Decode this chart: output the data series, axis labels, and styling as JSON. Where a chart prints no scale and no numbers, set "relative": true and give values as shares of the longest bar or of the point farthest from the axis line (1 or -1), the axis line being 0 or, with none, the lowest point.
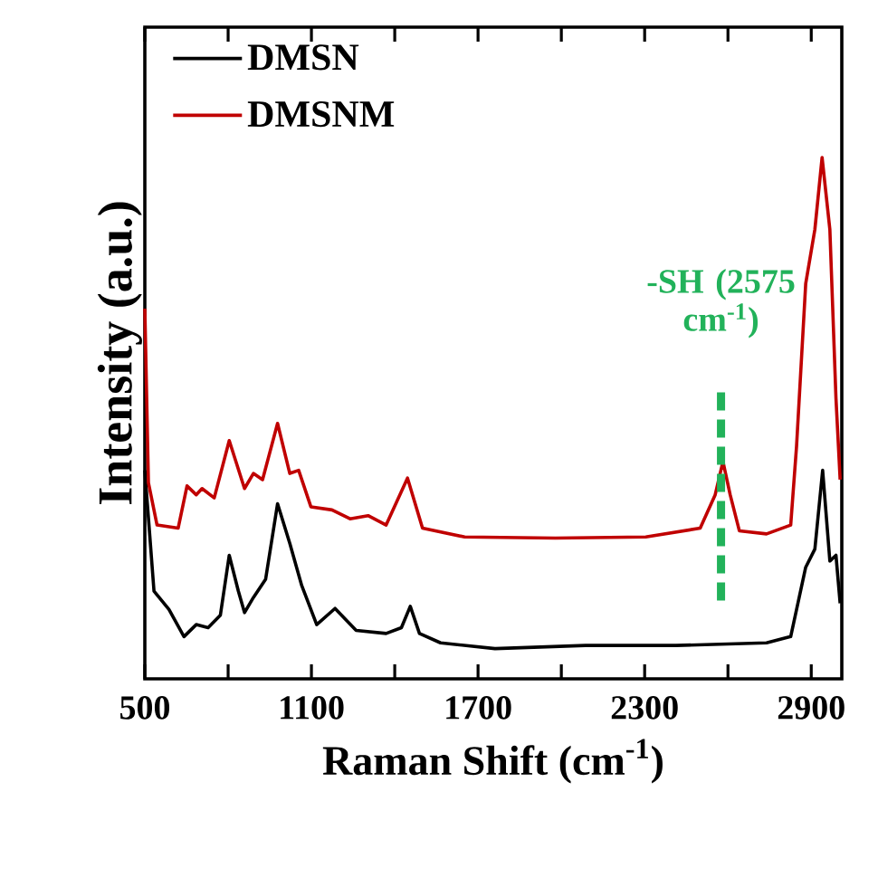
{
  "chart_data": {
    "type": "line",
    "relative": true,
    "xlabel": "Raman Shift (cm$^{-1}$)",
    "ylabel": "Intensity (a.u.)",
    "xlim": [
      500,
      3010
    ],
    "xticks": [
      500,
      {
        "value": 800,
        "label": null
      },
      1100,
      {
        "value": 1400,
        "label": null
      },
      1700,
      {
        "value": 2000,
        "label": null
      },
      2300,
      {
        "value": 2600,
        "label": null
      },
      2900
    ],
    "tick_labels": "x",
    "legend": "top left",
    "grid": false,
    "line_style": "solid",
    "marker": "none",
    "ref_lines": [
      {
        "axis": "x",
        "value": 2575,
        "label": "-SH (2575 cm$^{-1}$)",
        "color": "#22b25a",
        "line_style": "dashed"
      }
    ],
    "series": [
      {
        "name": "DMSN",
        "color": "#000000",
        "x": [
          500,
          533,
          587,
          641,
          685,
          728,
          772,
          804,
          837,
          859,
          891,
          935,
          978,
          1022,
          1065,
          1119,
          1185,
          1261,
          1369,
          1424,
          1456,
          1489,
          1565,
          1761,
          2087,
          2413,
          2739,
          2826,
          2880,
          2913,
          2941,
          2967,
          2989,
          3004
        ],
        "values": [
          0.4,
          0.168,
          0.133,
          0.081,
          0.104,
          0.098,
          0.122,
          0.237,
          0.168,
          0.127,
          0.156,
          0.191,
          0.336,
          0.26,
          0.179,
          0.104,
          0.135,
          0.093,
          0.087,
          0.098,
          0.139,
          0.087,
          0.069,
          0.058,
          0.064,
          0.064,
          0.069,
          0.081,
          0.214,
          0.249,
          0.4,
          0.226,
          0.237,
          0.145
        ]
      },
      {
        "name": "DMSNM",
        "color": "#c00000",
        "x": [
          500,
          513,
          544,
          620,
          652,
          685,
          706,
          750,
          804,
          859,
          891,
          924,
          978,
          1022,
          1054,
          1098,
          1174,
          1239,
          1304,
          1369,
          1446,
          1500,
          1652,
          1978,
          2304,
          2500,
          2554,
          2582,
          2608,
          2641,
          2739,
          2826,
          2847,
          2880,
          2913,
          2939,
          2967,
          2989,
          3004
        ],
        "values": [
          0.71,
          0.376,
          0.295,
          0.289,
          0.37,
          0.353,
          0.365,
          0.347,
          0.457,
          0.365,
          0.394,
          0.382,
          0.49,
          0.394,
          0.4,
          0.33,
          0.324,
          0.307,
          0.313,
          0.295,
          0.385,
          0.289,
          0.272,
          0.27,
          0.272,
          0.289,
          0.353,
          0.417,
          0.353,
          0.284,
          0.278,
          0.295,
          0.446,
          0.758,
          0.862,
          1.0,
          0.862,
          0.538,
          0.382
        ]
      }
    ]
  }
}
